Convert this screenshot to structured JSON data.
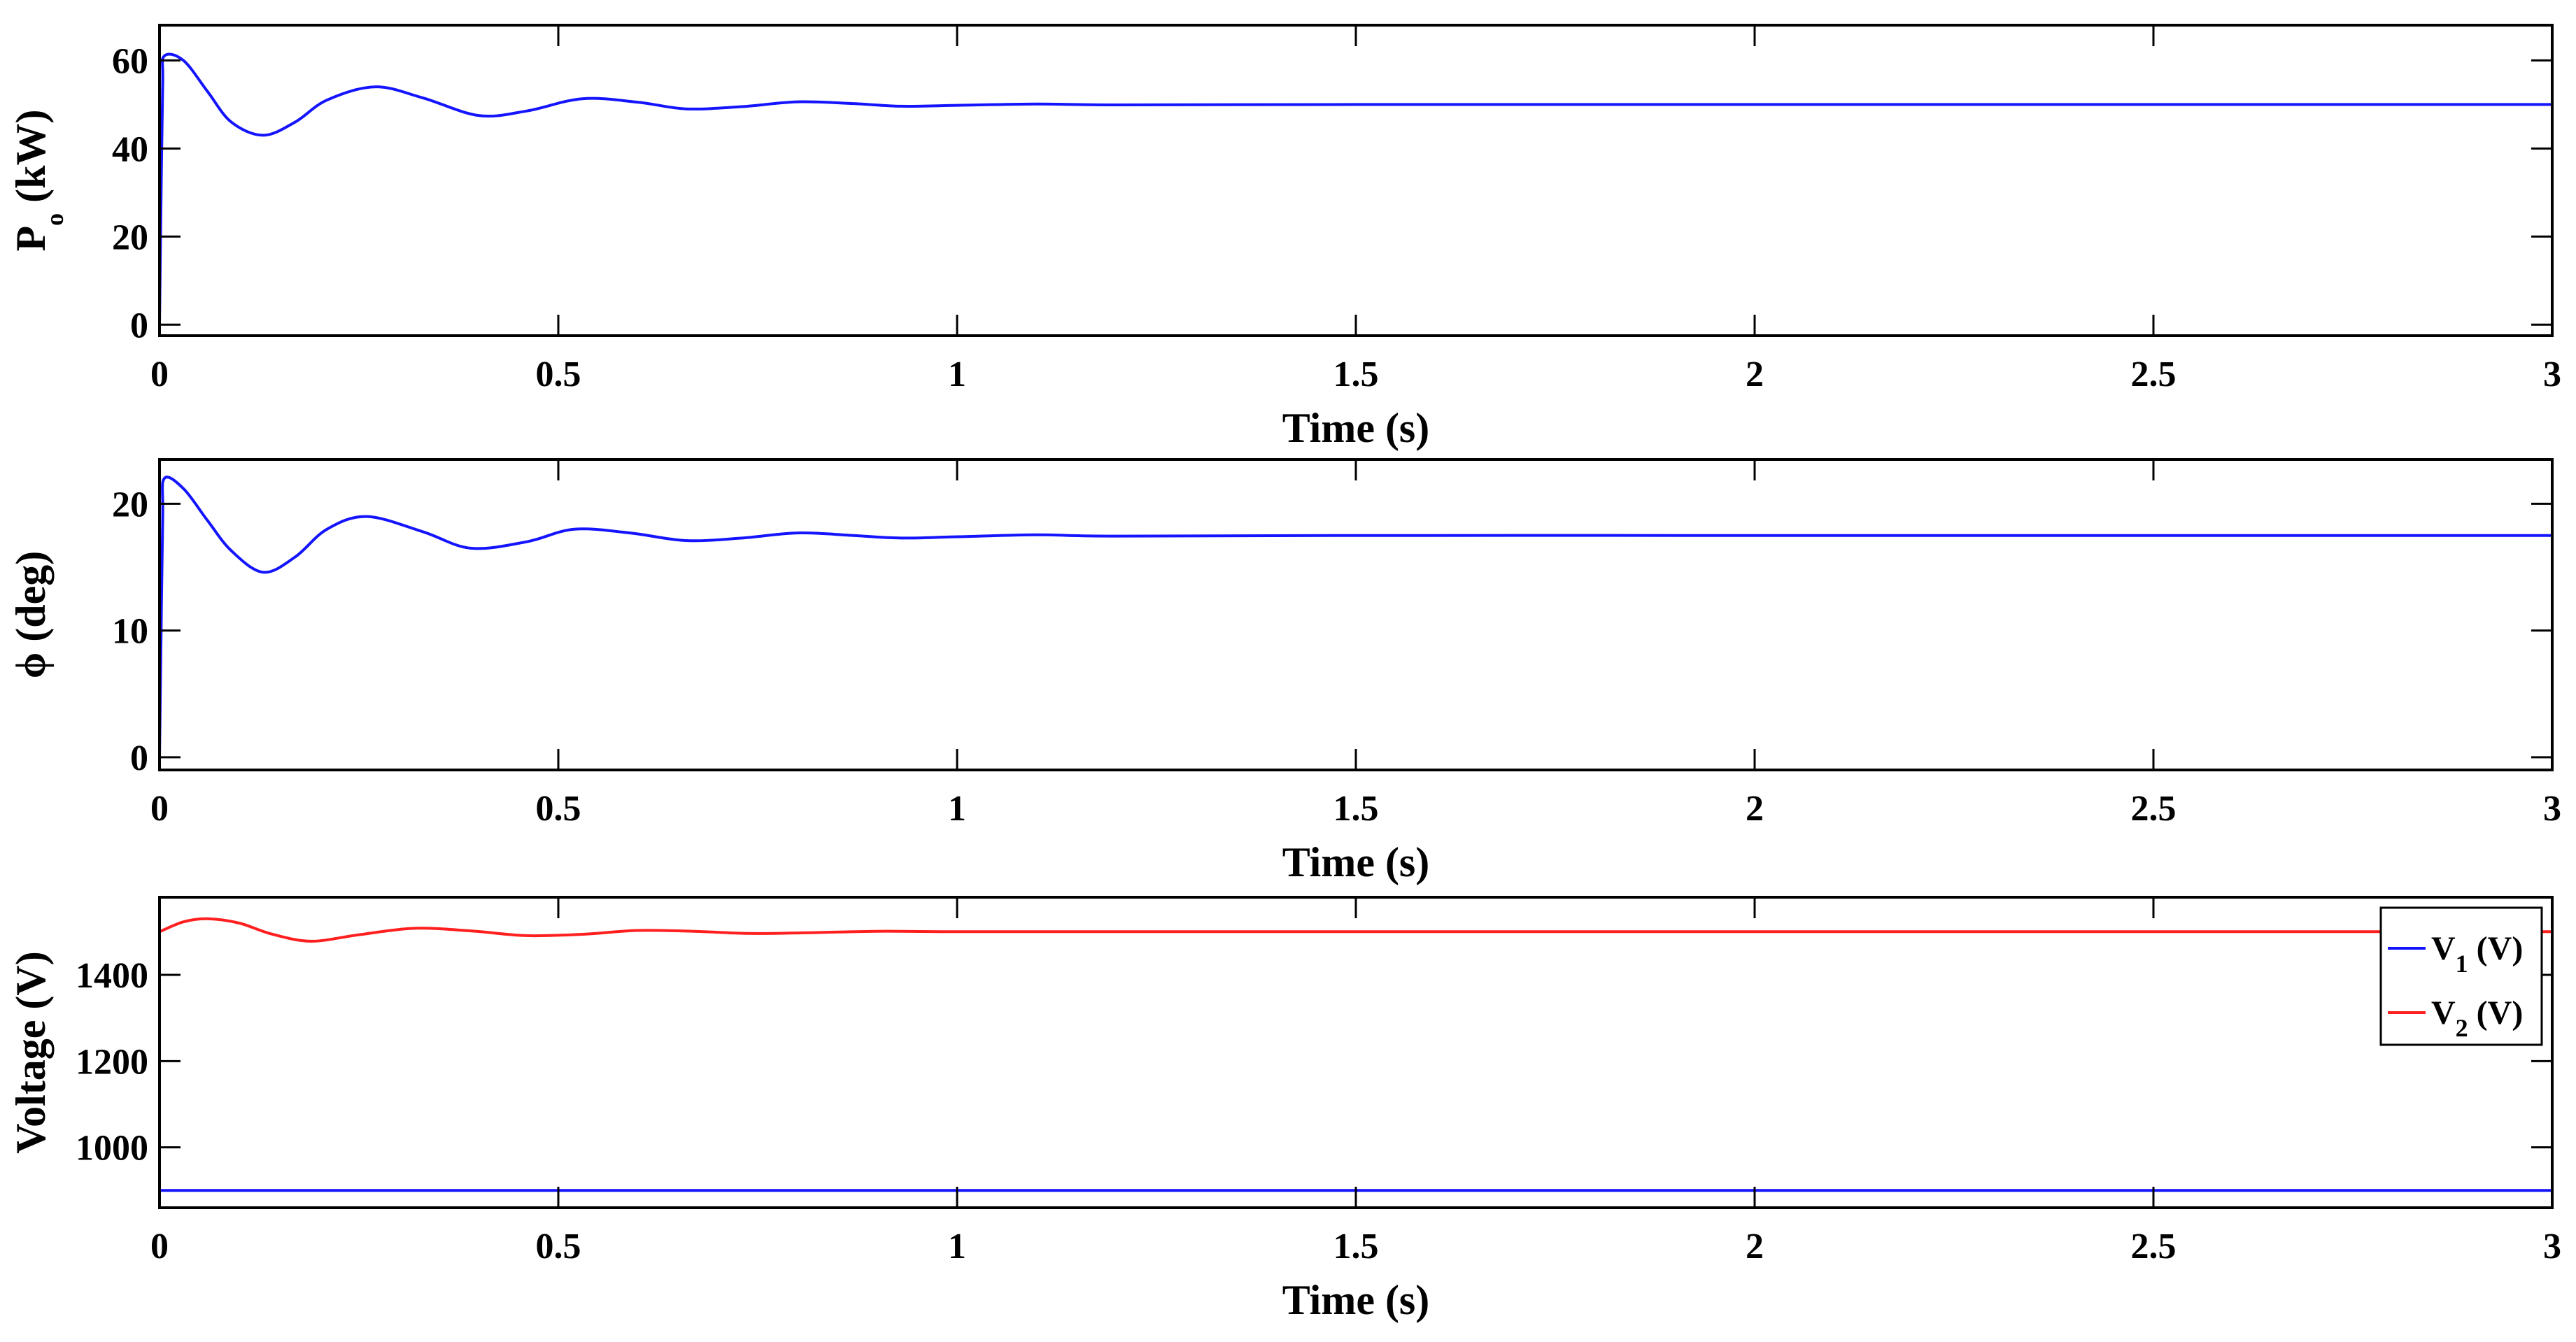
{
  "figure": {
    "colors": {
      "blue": "#1414ff",
      "red": "#ff1f1f",
      "axis": "#000000"
    }
  },
  "chart_data": [
    {
      "type": "line",
      "id": "power",
      "ylabel": "P",
      "ylabel_sub": "o",
      "ylabel_unit": "(kW)",
      "xlabel": "Time (s)",
      "xlim": [
        0,
        3
      ],
      "ylim": [
        -2.5,
        68
      ],
      "xticks": [
        0,
        0.5,
        1,
        1.5,
        2,
        2.5,
        3
      ],
      "xtick_labels": [
        "0",
        "0.5",
        "1",
        "1.5",
        "2",
        "2.5",
        "3"
      ],
      "yticks": [
        0,
        20,
        40,
        60
      ],
      "ytick_labels": [
        "0",
        "20",
        "40",
        "60"
      ],
      "grid": false,
      "series": [
        {
          "color": "#1414ff",
          "x": [
            0,
            0.002,
            0.004,
            0.006,
            0.03,
            0.06,
            0.09,
            0.13,
            0.17,
            0.21,
            0.27,
            0.33,
            0.4,
            0.46,
            0.53,
            0.6,
            0.66,
            0.73,
            0.8,
            0.87,
            0.93,
            1.0,
            1.1,
            1.2,
            1.5,
            2.0,
            2.5,
            3.0
          ],
          "y": [
            0,
            30,
            55,
            61,
            60,
            53,
            46,
            43,
            46,
            51,
            54,
            51.5,
            47.5,
            48.5,
            51.3,
            50.5,
            49,
            49.5,
            50.6,
            50.2,
            49.6,
            49.8,
            50.1,
            49.9,
            50,
            50,
            50,
            50
          ]
        }
      ]
    },
    {
      "type": "line",
      "id": "phase",
      "ylabel": "ϕ (deg)",
      "xlabel": "Time (s)",
      "xlim": [
        0,
        3
      ],
      "ylim": [
        -1,
        23.5
      ],
      "xticks": [
        0,
        0.5,
        1,
        1.5,
        2,
        2.5,
        3
      ],
      "xtick_labels": [
        "0",
        "0.5",
        "1",
        "1.5",
        "2",
        "2.5",
        "3"
      ],
      "yticks": [
        0,
        10,
        20
      ],
      "ytick_labels": [
        "0",
        "10",
        "20"
      ],
      "grid": false,
      "series": [
        {
          "color": "#1414ff",
          "x": [
            0,
            0.002,
            0.004,
            0.006,
            0.03,
            0.06,
            0.09,
            0.13,
            0.17,
            0.21,
            0.26,
            0.33,
            0.39,
            0.46,
            0.52,
            0.59,
            0.66,
            0.73,
            0.8,
            0.87,
            0.93,
            1.0,
            1.1,
            1.2,
            1.5,
            2.0,
            2.5,
            3.0
          ],
          "y": [
            0,
            10,
            19,
            22,
            21.2,
            18.7,
            16.3,
            14.6,
            15.8,
            18,
            19,
            17.8,
            16.5,
            17,
            18,
            17.7,
            17.1,
            17.3,
            17.7,
            17.5,
            17.3,
            17.4,
            17.55,
            17.45,
            17.5,
            17.5,
            17.5,
            17.5
          ]
        }
      ]
    },
    {
      "type": "line",
      "id": "voltage",
      "ylabel": "Voltage (V)",
      "xlabel": "Time (s)",
      "xlim": [
        0,
        3
      ],
      "ylim": [
        860,
        1580
      ],
      "xticks": [
        0,
        0.5,
        1,
        1.5,
        2,
        2.5,
        3
      ],
      "xtick_labels": [
        "0",
        "0.5",
        "1",
        "1.5",
        "2",
        "2.5",
        "3"
      ],
      "yticks": [
        1000,
        1200,
        1400
      ],
      "ytick_labels": [
        "1000",
        "1200",
        "1400"
      ],
      "grid": false,
      "legend": "top-right",
      "series": [
        {
          "name": "V",
          "name_sub": "1",
          "name_unit": "(V)",
          "color": "#1414ff",
          "x": [
            0,
            3
          ],
          "y": [
            900,
            900
          ]
        },
        {
          "name": "V",
          "name_sub": "2",
          "name_unit": "(V)",
          "color": "#ff1f1f",
          "x": [
            0,
            0.03,
            0.06,
            0.1,
            0.14,
            0.19,
            0.25,
            0.32,
            0.39,
            0.46,
            0.53,
            0.6,
            0.67,
            0.74,
            0.82,
            0.9,
            1.0,
            1.2,
            1.5,
            2.0,
            2.5,
            3.0
          ],
          "y": [
            1500,
            1523,
            1530,
            1520,
            1495,
            1478,
            1493,
            1508,
            1502,
            1491,
            1494,
            1503,
            1501,
            1496,
            1498,
            1501,
            1500,
            1500,
            1500,
            1500,
            1500,
            1500
          ]
        }
      ]
    }
  ]
}
